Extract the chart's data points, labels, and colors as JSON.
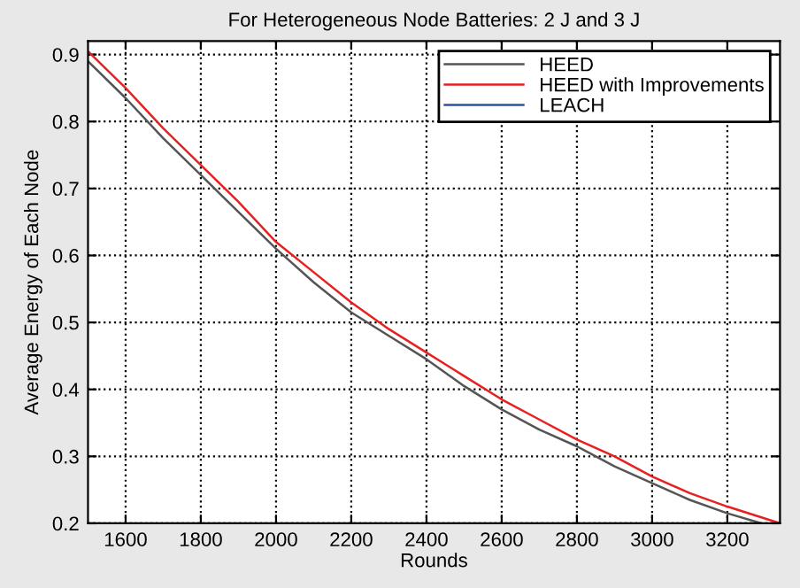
{
  "chart_data": {
    "type": "line",
    "title": "For Heterogeneous Node Batteries: 2 J and 3 J",
    "xlabel": "Rounds",
    "ylabel": "Average Energy of Each Node",
    "x": [
      1500,
      1600,
      1700,
      1800,
      1900,
      2000,
      2100,
      2200,
      2300,
      2400,
      2500,
      2600,
      2700,
      2800,
      2900,
      3000,
      3100,
      3200,
      3290
    ],
    "series": [
      {
        "name": "HEED",
        "color": "#555555",
        "values": [
          0.89,
          0.835,
          0.775,
          0.72,
          0.665,
          0.61,
          0.56,
          0.515,
          0.48,
          0.445,
          0.405,
          0.37,
          0.34,
          0.315,
          0.285,
          0.26,
          0.235,
          0.215,
          0.2
        ]
      },
      {
        "name": "HEED with Improvements",
        "color": "#e82020",
        "x": [
          1500,
          1600,
          1700,
          1800,
          1900,
          2000,
          2100,
          2200,
          2300,
          2400,
          2500,
          2600,
          2700,
          2800,
          2900,
          3000,
          3100,
          3200,
          3340
        ],
        "values": [
          0.905,
          0.85,
          0.79,
          0.735,
          0.68,
          0.62,
          0.575,
          0.53,
          0.49,
          0.455,
          0.42,
          0.385,
          0.355,
          0.325,
          0.3,
          0.27,
          0.245,
          0.225,
          0.2
        ]
      },
      {
        "name": "LEACH",
        "color": "#3050a0",
        "values": [
          null,
          null,
          null,
          null,
          null,
          null,
          null,
          null,
          null,
          null,
          null,
          null,
          null,
          null,
          null,
          null,
          null,
          null,
          null
        ]
      }
    ],
    "xlim": [
      1500,
      3340
    ],
    "ylim": [
      0.2,
      0.92
    ],
    "xticks": [
      1600,
      1800,
      2000,
      2200,
      2400,
      2600,
      2800,
      3000,
      3200
    ],
    "yticks": [
      0.2,
      0.3,
      0.4,
      0.5,
      0.6,
      0.7,
      0.8,
      0.9
    ],
    "grid": true,
    "legend": "top right",
    "line_style": "solid"
  }
}
